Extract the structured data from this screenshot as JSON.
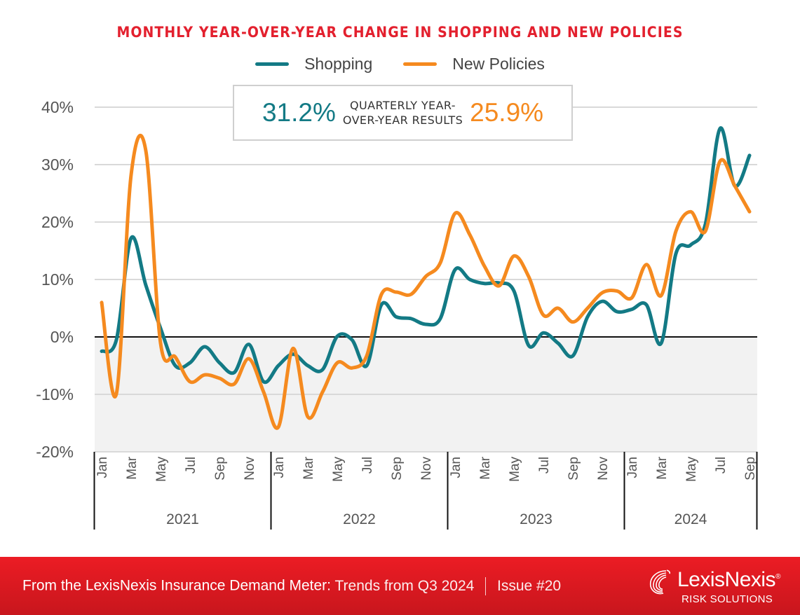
{
  "chart_data": {
    "type": "line",
    "title": "MONTHLY YEAR-OVER-YEAR CHANGE IN SHOPPING AND NEW POLICIES",
    "xlabel": "",
    "ylabel": "",
    "ylim": [
      -20,
      40
    ],
    "yticks": [
      40,
      30,
      20,
      10,
      0,
      -10,
      -20
    ],
    "ytick_labels": [
      "40%",
      "30%",
      "20%",
      "10%",
      "0%",
      "-10%",
      "-20%"
    ],
    "grid": true,
    "legend_position": "top-center",
    "negative_region_shaded": true,
    "years": [
      {
        "label": "2021",
        "months": 12
      },
      {
        "label": "2022",
        "months": 12
      },
      {
        "label": "2023",
        "months": 12
      },
      {
        "label": "2024",
        "months": 9
      }
    ],
    "month_tick_labels": [
      "Jan",
      "Mar",
      "May",
      "Jul",
      "Sep",
      "Nov"
    ],
    "x": [
      "2021-01",
      "2021-02",
      "2021-03",
      "2021-04",
      "2021-05",
      "2021-06",
      "2021-07",
      "2021-08",
      "2021-09",
      "2021-10",
      "2021-11",
      "2021-12",
      "2022-01",
      "2022-02",
      "2022-03",
      "2022-04",
      "2022-05",
      "2022-06",
      "2022-07",
      "2022-08",
      "2022-09",
      "2022-10",
      "2022-11",
      "2022-12",
      "2023-01",
      "2023-02",
      "2023-03",
      "2023-04",
      "2023-05",
      "2023-06",
      "2023-07",
      "2023-08",
      "2023-09",
      "2023-10",
      "2023-11",
      "2023-12",
      "2024-01",
      "2024-02",
      "2024-03",
      "2024-04",
      "2024-05",
      "2024-06",
      "2024-07",
      "2024-08",
      "2024-09"
    ],
    "series": [
      {
        "name": "Shopping",
        "color": "#137a85",
        "values": [
          -2.5,
          -0.5,
          17.2,
          9.0,
          1.5,
          -5.0,
          -4.5,
          -1.7,
          -4.5,
          -6.2,
          -1.3,
          -7.8,
          -5.0,
          -3.0,
          -5.0,
          -5.7,
          0.1,
          -0.5,
          -5.0,
          5.6,
          3.5,
          3.2,
          2.2,
          3.2,
          11.7,
          10.0,
          9.3,
          9.4,
          8.0,
          -1.5,
          0.7,
          -1.1,
          -3.3,
          3.5,
          6.2,
          4.4,
          4.8,
          5.6,
          -1.1,
          14.5,
          16.0,
          19.6,
          36.3,
          26.3,
          31.6
        ]
      },
      {
        "name": "New Policies",
        "color": "#f58a1f",
        "values": [
          6.0,
          -9.9,
          28.2,
          32.4,
          -1.1,
          -3.5,
          -7.8,
          -6.6,
          -7.2,
          -8.2,
          -3.8,
          -9.6,
          -15.7,
          -2.0,
          -13.9,
          -9.6,
          -4.5,
          -5.4,
          -3.3,
          7.4,
          7.8,
          7.4,
          10.5,
          12.9,
          21.5,
          17.8,
          12.3,
          8.9,
          14.1,
          10.5,
          3.8,
          5.0,
          2.6,
          5.0,
          7.7,
          8.0,
          6.8,
          12.6,
          7.2,
          18.4,
          21.8,
          18.4,
          30.6,
          26.3,
          21.8
        ]
      }
    ],
    "callout": {
      "shopping_value": "31.2%",
      "label_line1": "QUARTERLY YEAR-",
      "label_line2": "OVER-YEAR RESULTS",
      "new_policies_value": "25.9%"
    }
  },
  "legend": {
    "items": [
      {
        "label": "Shopping",
        "color": "#137a85"
      },
      {
        "label": "New Policies",
        "color": "#f58a1f"
      }
    ]
  },
  "footer": {
    "source_bold": "From the LexisNexis Insurance Demand Meter:",
    "source_light": "Trends from Q3 2024",
    "issue": "Issue #20",
    "logo_word": "LexisNexis",
    "logo_registered": "®",
    "logo_sub": "RISK SOLUTIONS",
    "brand_color": "#e3202e"
  }
}
